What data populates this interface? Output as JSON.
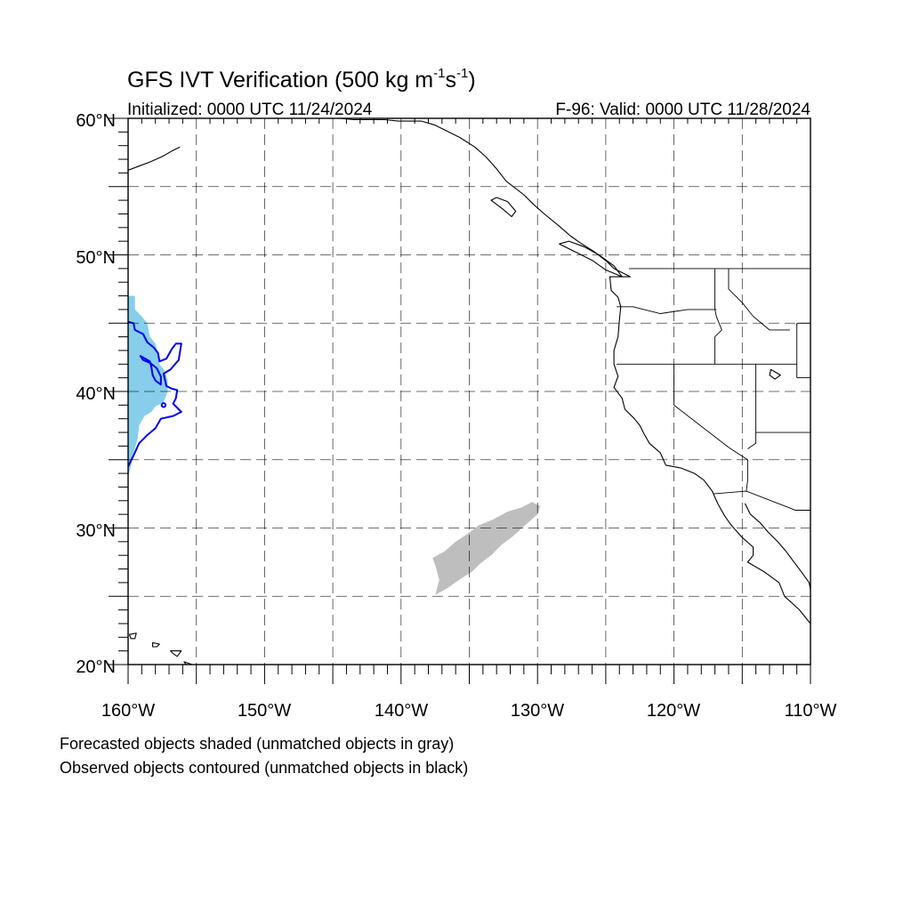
{
  "title": {
    "main": "GFS IVT Verification (500 kg m",
    "sup1": "-1",
    "mid": "s",
    "sup2": "-1",
    "end": ")"
  },
  "subtitle_left": "Initialized: 0000 UTC 11/24/2024",
  "subtitle_right": "F-96: Valid: 0000 UTC 11/28/2024",
  "map": {
    "lon_range": [
      -160,
      -110
    ],
    "lat_range": [
      20,
      60
    ],
    "lat_labels": [
      "60°N",
      "50°N",
      "40°N",
      "30°N",
      "20°N"
    ],
    "lon_labels": [
      "160°W",
      "150°W",
      "140°W",
      "130°W",
      "120°W",
      "110°W"
    ],
    "grid": "dashed every 5°",
    "colors": {
      "matched_forecast": "#87ceeb",
      "unmatched_forecast": "#bebebe",
      "matched_observed": "#0000ee",
      "coastline": "#000000"
    }
  },
  "objects": {
    "forecast_matched": {
      "color_name": "sky blue",
      "polygon_lonlat": [
        [
          -160,
          47
        ],
        [
          -159.5,
          47
        ],
        [
          -159.5,
          46
        ],
        [
          -159,
          45.5
        ],
        [
          -158.6,
          45
        ],
        [
          -158.4,
          44
        ],
        [
          -158,
          43.5
        ],
        [
          -157.8,
          42.8
        ],
        [
          -157.7,
          42
        ],
        [
          -157.3,
          41.5
        ],
        [
          -157.1,
          40.8
        ],
        [
          -157.1,
          40
        ],
        [
          -157.4,
          39.2
        ],
        [
          -158,
          38.9
        ],
        [
          -158.3,
          38.5
        ],
        [
          -158.8,
          38.2
        ],
        [
          -159.2,
          37.5
        ],
        [
          -159.3,
          36.5
        ],
        [
          -159.6,
          35.5
        ],
        [
          -159.8,
          34.5
        ],
        [
          -160,
          33.7
        ]
      ]
    },
    "forecast_unmatched": {
      "color_name": "gray",
      "polygon_lonlat": [
        [
          -137.5,
          25.1
        ],
        [
          -136.6,
          25.6
        ],
        [
          -135.6,
          26.3
        ],
        [
          -134.8,
          26.8
        ],
        [
          -134.2,
          27.4
        ],
        [
          -133.4,
          28
        ],
        [
          -132.6,
          28.8
        ],
        [
          -131.8,
          29.4
        ],
        [
          -130.8,
          30.3
        ],
        [
          -130,
          31
        ],
        [
          -129.8,
          31.6
        ],
        [
          -130.4,
          31.9
        ],
        [
          -131.2,
          31.5
        ],
        [
          -132.2,
          31.2
        ],
        [
          -133.3,
          30.6
        ],
        [
          -134.3,
          30.2
        ],
        [
          -135.1,
          29.6
        ],
        [
          -136,
          29
        ],
        [
          -136.8,
          28.3
        ],
        [
          -137.7,
          27.8
        ],
        [
          -137.5,
          27.3
        ],
        [
          -137.2,
          26.2
        ]
      ]
    },
    "observed_matched": {
      "color_name": "blue",
      "polyline_lonlat": [
        [
          -160,
          45.1
        ],
        [
          -159.6,
          45
        ],
        [
          -159.5,
          44.5
        ],
        [
          -158.9,
          44.2
        ],
        [
          -158.6,
          43.6
        ],
        [
          -158.1,
          43.2
        ],
        [
          -157.8,
          42.8
        ],
        [
          -157.7,
          42.2
        ],
        [
          -157.2,
          42.4
        ],
        [
          -156.8,
          43.1
        ],
        [
          -156.5,
          43.5
        ],
        [
          -156.1,
          43.5
        ],
        [
          -156.3,
          42.3
        ],
        [
          -156.9,
          41.6
        ],
        [
          -157.4,
          41.3
        ],
        [
          -157.2,
          40.4
        ],
        [
          -156.8,
          40.2
        ],
        [
          -156.4,
          40.1
        ],
        [
          -156.5,
          39.5
        ],
        [
          -156.7,
          39.1
        ],
        [
          -156.1,
          38.5
        ],
        [
          -156.7,
          38.2
        ],
        [
          -157.6,
          38
        ],
        [
          -158,
          37.3
        ],
        [
          -158.6,
          36.8
        ],
        [
          -159.2,
          36.2
        ],
        [
          -159.6,
          35.3
        ],
        [
          -160,
          34.5
        ]
      ],
      "blob_lonlat": [
        [
          -159.1,
          42.6
        ],
        [
          -158.4,
          42.2
        ],
        [
          -158.3,
          41.8
        ],
        [
          -158.2,
          41.2
        ],
        [
          -158,
          40.8
        ],
        [
          -157.6,
          40.5
        ],
        [
          -157.6,
          41.1
        ],
        [
          -157.9,
          41.7
        ],
        [
          -158.4,
          42.1
        ],
        [
          -158.9,
          42.3
        ]
      ],
      "dot_lonlat": [
        -157.4,
        39.0
      ]
    }
  },
  "coastlines": {
    "north_america_west": [
      [
        -138.5,
        59.8
      ],
      [
        -137.5,
        59.5
      ],
      [
        -136.5,
        59
      ],
      [
        -135.7,
        58.6
      ],
      [
        -134.6,
        57.9
      ],
      [
        -133.8,
        57.2
      ],
      [
        -133,
        56.3
      ],
      [
        -132.3,
        55.4
      ],
      [
        -131,
        54.4
      ],
      [
        -130.3,
        53.7
      ],
      [
        -129.5,
        53
      ],
      [
        -128.4,
        52.1
      ],
      [
        -127.6,
        51.4
      ],
      [
        -126.9,
        50.9
      ],
      [
        -125.8,
        50.2
      ],
      [
        -124.9,
        49.5
      ],
      [
        -124.4,
        49
      ],
      [
        -123.2,
        48.4
      ],
      [
        -124.7,
        48.4
      ],
      [
        -124.6,
        47.4
      ],
      [
        -124.1,
        46.9
      ],
      [
        -123.9,
        46.2
      ],
      [
        -124,
        45.2
      ],
      [
        -124.1,
        44
      ],
      [
        -124.4,
        43
      ],
      [
        -124.4,
        42
      ],
      [
        -124.1,
        41.1
      ],
      [
        -124.4,
        40.3
      ],
      [
        -123.8,
        39.5
      ],
      [
        -123.6,
        38.7
      ],
      [
        -122.9,
        38
      ],
      [
        -122.5,
        37.5
      ],
      [
        -122.2,
        36.9
      ],
      [
        -121.8,
        36.2
      ],
      [
        -121,
        35.5
      ],
      [
        -120.6,
        34.6
      ],
      [
        -119.5,
        34.4
      ],
      [
        -118.5,
        34
      ],
      [
        -117.8,
        33.5
      ],
      [
        -117.2,
        32.7
      ],
      [
        -116.8,
        31.8
      ],
      [
        -116.3,
        30.9
      ],
      [
        -115.8,
        30.2
      ],
      [
        -115,
        29.3
      ],
      [
        -114.2,
        28.6
      ],
      [
        -114.2,
        28
      ],
      [
        -114.6,
        27.5
      ],
      [
        -113.4,
        26.8
      ],
      [
        -112.3,
        26
      ],
      [
        -111.9,
        25
      ],
      [
        -110.8,
        24
      ],
      [
        -110,
        23
      ]
    ],
    "gulf_california": [
      [
        -114.8,
        31.8
      ],
      [
        -114.4,
        31
      ],
      [
        -113.7,
        30.4
      ],
      [
        -113.1,
        29.7
      ],
      [
        -112.4,
        29
      ],
      [
        -111.8,
        28.3
      ],
      [
        -111.2,
        27.5
      ],
      [
        -110.6,
        26.7
      ],
      [
        -110.1,
        26
      ],
      [
        -110,
        25.5
      ]
    ],
    "alaska_sw": [
      [
        -160,
        56.2
      ],
      [
        -159.2,
        56.5
      ],
      [
        -158.4,
        56.8
      ],
      [
        -157.5,
        57.2
      ],
      [
        -156.8,
        57.6
      ],
      [
        -156.2,
        57.9
      ]
    ],
    "alaska_se": [
      [
        -144.5,
        60
      ],
      [
        -143.5,
        59.9
      ],
      [
        -142.3,
        59.9
      ],
      [
        -141.2,
        59.9
      ],
      [
        -140.2,
        59.8
      ],
      [
        -139.2,
        59.8
      ],
      [
        -138.5,
        59.8
      ]
    ],
    "islands": [
      [
        [
          -133.4,
          54
        ],
        [
          -132.6,
          53.4
        ],
        [
          -131.9,
          52.8
        ],
        [
          -131.6,
          53.2
        ],
        [
          -132.2,
          53.9
        ],
        [
          -133,
          54.2
        ]
      ],
      [
        [
          -128.4,
          50.8
        ],
        [
          -127.4,
          50.3
        ],
        [
          -126,
          49.6
        ],
        [
          -125,
          48.9
        ],
        [
          -123.8,
          48.4
        ],
        [
          -124.4,
          49.2
        ],
        [
          -125.5,
          50
        ],
        [
          -126.6,
          50.6
        ],
        [
          -127.7,
          51
        ]
      ],
      [
        [
          -159.9,
          22.2
        ],
        [
          -159.4,
          22.3
        ],
        [
          -159.5,
          21.9
        ],
        [
          -159.8,
          21.9
        ]
      ],
      [
        [
          -158.2,
          21.6
        ],
        [
          -157.7,
          21.5
        ],
        [
          -157.9,
          21.3
        ],
        [
          -158.2,
          21.3
        ]
      ],
      [
        [
          -156.9,
          21
        ],
        [
          -156.1,
          21
        ],
        [
          -156.4,
          20.6
        ],
        [
          -156.7,
          20.8
        ]
      ],
      [
        [
          -155.9,
          20.2
        ],
        [
          -155,
          19.9
        ],
        [
          -155.3,
          19.4
        ]
      ],
      [
        [
          -112.9,
          41.6
        ],
        [
          -112.2,
          41.2
        ],
        [
          -112.6,
          40.9
        ],
        [
          -113,
          41.2
        ]
      ]
    ]
  },
  "borders": {
    "us_canada": [
      [
        -123.3,
        49
      ],
      [
        -110,
        49
      ]
    ],
    "us_mexico": [
      [
        -117.1,
        32.5
      ],
      [
        -114.7,
        32.7
      ],
      [
        -111.1,
        31.3
      ],
      [
        -110,
        31.3
      ]
    ],
    "states": [
      [
        [
          -124.2,
          46.2
        ],
        [
          -123,
          46.2
        ],
        [
          -121,
          45.7
        ],
        [
          -119,
          46
        ],
        [
          -116.9,
          46
        ]
      ],
      [
        [
          -117,
          49
        ],
        [
          -117,
          46
        ],
        [
          -116.9,
          45.5
        ],
        [
          -116.5,
          44.5
        ],
        [
          -117,
          44
        ],
        [
          -117,
          42
        ]
      ],
      [
        [
          -124.2,
          42
        ],
        [
          -111,
          42
        ]
      ],
      [
        [
          -120,
          42
        ],
        [
          -120,
          39
        ],
        [
          -116,
          35.9
        ],
        [
          -114.6,
          35
        ],
        [
          -114.6,
          33.5
        ],
        [
          -114.7,
          32.7
        ]
      ],
      [
        [
          -114,
          42
        ],
        [
          -114,
          36.2
        ],
        [
          -114.6,
          35.8
        ]
      ],
      [
        [
          -111,
          45
        ],
        [
          -110,
          45
        ]
      ],
      [
        [
          -111,
          45
        ],
        [
          -111,
          41
        ]
      ],
      [
        [
          -111,
          41
        ],
        [
          -110,
          41
        ]
      ],
      [
        [
          -114,
          37
        ],
        [
          -110,
          37
        ]
      ],
      [
        [
          -116,
          49
        ],
        [
          -116,
          47.5
        ],
        [
          -115,
          46.5
        ],
        [
          -114.2,
          45.5
        ],
        [
          -113,
          44.5
        ],
        [
          -111.5,
          44.5
        ]
      ]
    ]
  },
  "footer": {
    "line1": "Forecasted objects shaded (unmatched objects in gray)",
    "line2": "Observed objects contoured (unmatched objects in black)"
  }
}
